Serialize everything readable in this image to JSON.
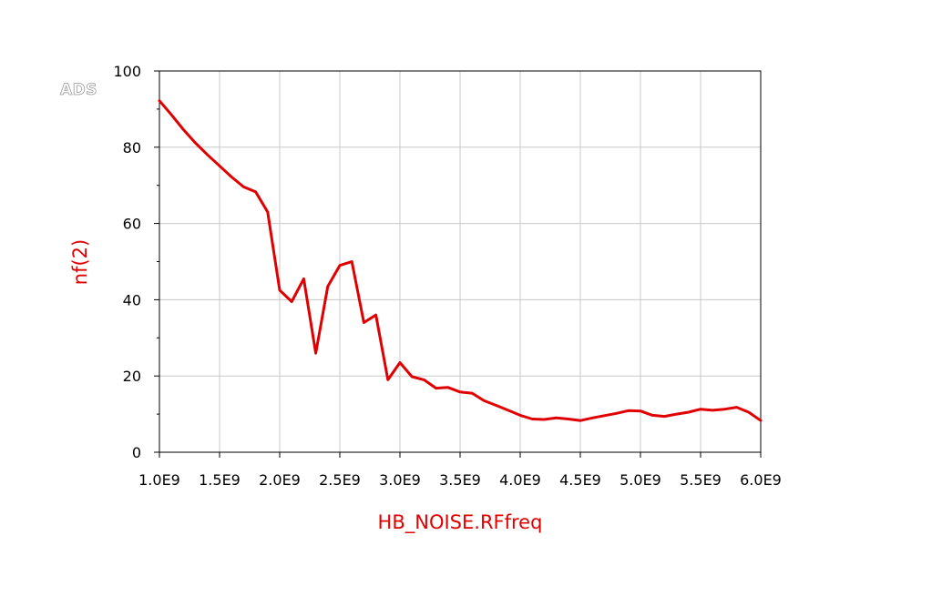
{
  "watermark": "ADS",
  "chart_data": {
    "type": "line",
    "title": "",
    "xlabel": "HB_NOISE.RFfreq",
    "ylabel": "nf(2)",
    "xlim": [
      1000000000.0,
      6000000000.0
    ],
    "ylim": [
      0,
      100
    ],
    "grid": true,
    "x_ticks": [
      1000000000.0,
      1500000000.0,
      2000000000.0,
      2500000000.0,
      3000000000.0,
      3500000000.0,
      4000000000.0,
      4500000000.0,
      5000000000.0,
      5500000000.0,
      6000000000.0
    ],
    "x_tick_labels": [
      "1.0E9",
      "1.5E9",
      "2.0E9",
      "2.5E9",
      "3.0E9",
      "3.5E9",
      "4.0E9",
      "4.5E9",
      "5.0E9",
      "5.5E9",
      "6.0E9"
    ],
    "y_ticks": [
      0,
      20,
      40,
      60,
      80,
      100
    ],
    "y_tick_labels": [
      "0",
      "20",
      "40",
      "60",
      "80",
      "100"
    ],
    "colors": {
      "series": "#e00000",
      "axis_label": "#e00000",
      "grid": "#c8c8c8",
      "frame": "#000000"
    },
    "series": [
      {
        "x": [
          1000000000.0,
          1100000000.0,
          1200000000.0,
          1300000000.0,
          1400000000.0,
          1500000000.0,
          1600000000.0,
          1700000000.0,
          1800000000.0,
          1900000000.0,
          2000000000.0,
          2100000000.0,
          2200000000.0,
          2300000000.0,
          2400000000.0,
          2500000000.0,
          2600000000.0,
          2700000000.0,
          2800000000.0,
          2900000000.0,
          3000000000.0,
          3100000000.0,
          3200000000.0,
          3300000000.0,
          3400000000.0,
          3500000000.0,
          3600000000.0,
          3700000000.0,
          3800000000.0,
          3900000000.0,
          4000000000.0,
          4100000000.0,
          4200000000.0,
          4300000000.0,
          4400000000.0,
          4500000000.0,
          4600000000.0,
          4700000000.0,
          4800000000.0,
          4900000000.0,
          5000000000.0,
          5100000000.0,
          5200000000.0,
          5300000000.0,
          5400000000.0,
          5500000000.0,
          5600000000.0,
          5700000000.0,
          5800000000.0,
          5900000000.0,
          6000000000.0
        ],
        "values": [
          92.2,
          88.5,
          84.6,
          81.1,
          78.0,
          75.1,
          72.2,
          69.6,
          68.3,
          63.0,
          42.5,
          39.5,
          45.5,
          26.0,
          43.5,
          49.0,
          50.0,
          34.0,
          36.0,
          19.0,
          23.5,
          19.8,
          19.0,
          16.8,
          17.0,
          15.8,
          15.5,
          13.5,
          12.3,
          11.0,
          9.7,
          8.7,
          8.6,
          9.0,
          8.7,
          8.3,
          9.0,
          9.6,
          10.2,
          10.9,
          10.8,
          9.7,
          9.4,
          10.0,
          10.5,
          11.3,
          11.0,
          11.3,
          11.8,
          10.5,
          8.3
        ]
      }
    ]
  }
}
